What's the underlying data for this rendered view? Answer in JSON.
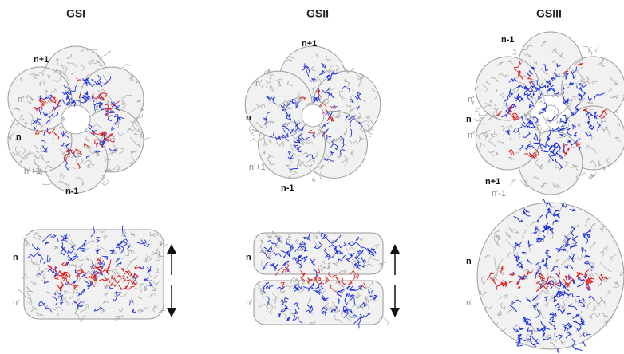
{
  "panels": [
    {
      "title": "GSI",
      "top_labels": [
        "n+1",
        "n'",
        "n",
        "n'+1",
        "n-1"
      ],
      "bottom_labels": [
        "n",
        "n'"
      ]
    },
    {
      "title": "GSII",
      "top_labels": [
        "n+1",
        "n'",
        "n",
        "n'+1",
        "n-1"
      ],
      "bottom_labels": [
        "n",
        "n'"
      ]
    },
    {
      "title": "GSIII",
      "top_labels": [
        "n-1",
        "n'",
        "n",
        "n'",
        "n+1",
        "n'-1"
      ],
      "bottom_labels": [
        "n",
        "n'"
      ]
    }
  ]
}
